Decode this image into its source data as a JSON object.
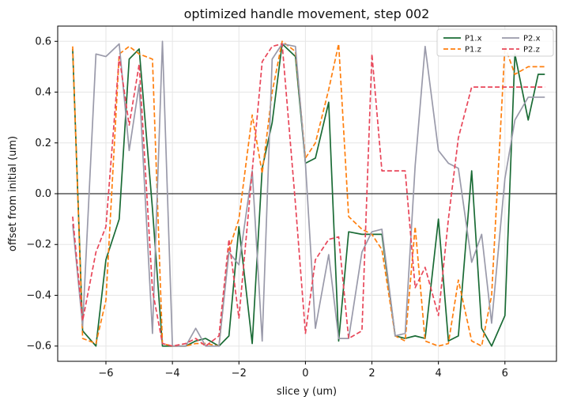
{
  "chart_data": {
    "type": "line",
    "title": "optimized handle movement, step 002",
    "xlabel": "slice y (um)",
    "ylabel": "offset from initial (um)",
    "xlim": [
      -7.45,
      7.55
    ],
    "ylim": [
      -0.66,
      0.66
    ],
    "xticks": [
      -6,
      -4,
      -2,
      0,
      2,
      4,
      6
    ],
    "yticks": [
      -0.6,
      -0.4,
      -0.2,
      0.0,
      0.2,
      0.4,
      0.6
    ],
    "x_tick_labels": [
      "−6",
      "−4",
      "−2",
      "0",
      "2",
      "4",
      "6"
    ],
    "y_tick_labels": [
      "−0.6",
      "−0.4",
      "−0.2",
      "0.0",
      "0.2",
      "0.4",
      "0.6"
    ],
    "grid": true,
    "zero_line": true,
    "legend_position": "top-right",
    "legend_columns": 2,
    "x": [
      -7.0,
      -6.7,
      -6.3,
      -6.0,
      -5.6,
      -5.3,
      -5.0,
      -4.6,
      -4.3,
      -4.0,
      -3.6,
      -3.3,
      -3.0,
      -2.6,
      -2.3,
      -2.0,
      -1.6,
      -1.3,
      -1.0,
      -0.7,
      -0.3,
      0.0,
      0.3,
      0.7,
      1.0,
      1.3,
      1.7,
      2.0,
      2.3,
      2.7,
      3.0,
      3.3,
      3.6,
      4.0,
      4.3,
      4.6,
      5.0,
      5.3,
      5.6,
      6.0,
      6.3,
      6.7,
      7.0,
      7.2
    ],
    "series": [
      {
        "name": "P1.x",
        "color": "#1a6b35",
        "style": "solid",
        "values": [
          0.57,
          -0.54,
          -0.6,
          -0.26,
          -0.1,
          0.53,
          0.57,
          -0.06,
          -0.6,
          -0.6,
          -0.6,
          -0.58,
          -0.57,
          -0.6,
          -0.56,
          -0.13,
          -0.59,
          0.1,
          0.28,
          0.59,
          0.54,
          0.12,
          0.14,
          0.36,
          -0.58,
          -0.15,
          -0.16,
          -0.16,
          -0.16,
          -0.56,
          -0.57,
          -0.56,
          -0.57,
          -0.1,
          -0.58,
          -0.56,
          0.09,
          -0.53,
          -0.6,
          -0.48,
          0.55,
          0.29,
          0.47,
          0.47
        ]
      },
      {
        "name": "P1.z",
        "color": "#ff7f0e",
        "style": "dashed",
        "values": [
          0.58,
          -0.57,
          -0.59,
          -0.42,
          0.55,
          0.58,
          0.55,
          0.53,
          -0.59,
          -0.6,
          -0.6,
          -0.59,
          -0.59,
          -0.6,
          -0.22,
          -0.1,
          0.31,
          0.08,
          0.4,
          0.6,
          0.56,
          0.14,
          0.2,
          0.41,
          0.59,
          -0.09,
          -0.14,
          -0.16,
          -0.22,
          -0.56,
          -0.58,
          -0.13,
          -0.58,
          -0.6,
          -0.59,
          -0.34,
          -0.58,
          -0.6,
          -0.4,
          0.58,
          0.47,
          0.5,
          0.5,
          0.5
        ]
      },
      {
        "name": "P2.x",
        "color": "#9a9aaa",
        "style": "solid",
        "values": [
          -0.12,
          -0.52,
          0.55,
          0.54,
          0.59,
          0.17,
          0.43,
          -0.55,
          0.6,
          -0.6,
          -0.6,
          -0.53,
          -0.6,
          -0.6,
          -0.23,
          -0.28,
          0.09,
          -0.58,
          0.53,
          0.59,
          0.58,
          0.12,
          -0.53,
          -0.24,
          -0.57,
          -0.57,
          -0.23,
          -0.15,
          -0.14,
          -0.56,
          -0.55,
          0.11,
          0.58,
          0.17,
          0.12,
          0.1,
          -0.27,
          -0.16,
          -0.51,
          0.06,
          0.29,
          0.38,
          0.38,
          0.38
        ]
      },
      {
        "name": "P2.z",
        "color": "#e8475a",
        "style": "dashed",
        "values": [
          -0.09,
          -0.5,
          -0.23,
          -0.13,
          0.54,
          0.27,
          0.51,
          -0.38,
          -0.59,
          -0.6,
          -0.59,
          -0.57,
          -0.6,
          -0.56,
          -0.18,
          -0.49,
          0.09,
          0.52,
          0.58,
          0.59,
          -0.04,
          -0.55,
          -0.26,
          -0.18,
          -0.17,
          -0.57,
          -0.54,
          0.55,
          0.09,
          0.09,
          0.09,
          -0.37,
          -0.29,
          -0.48,
          -0.1,
          0.22,
          0.42,
          0.42,
          0.42,
          0.42,
          0.42,
          0.42,
          0.42,
          0.42
        ]
      }
    ]
  }
}
